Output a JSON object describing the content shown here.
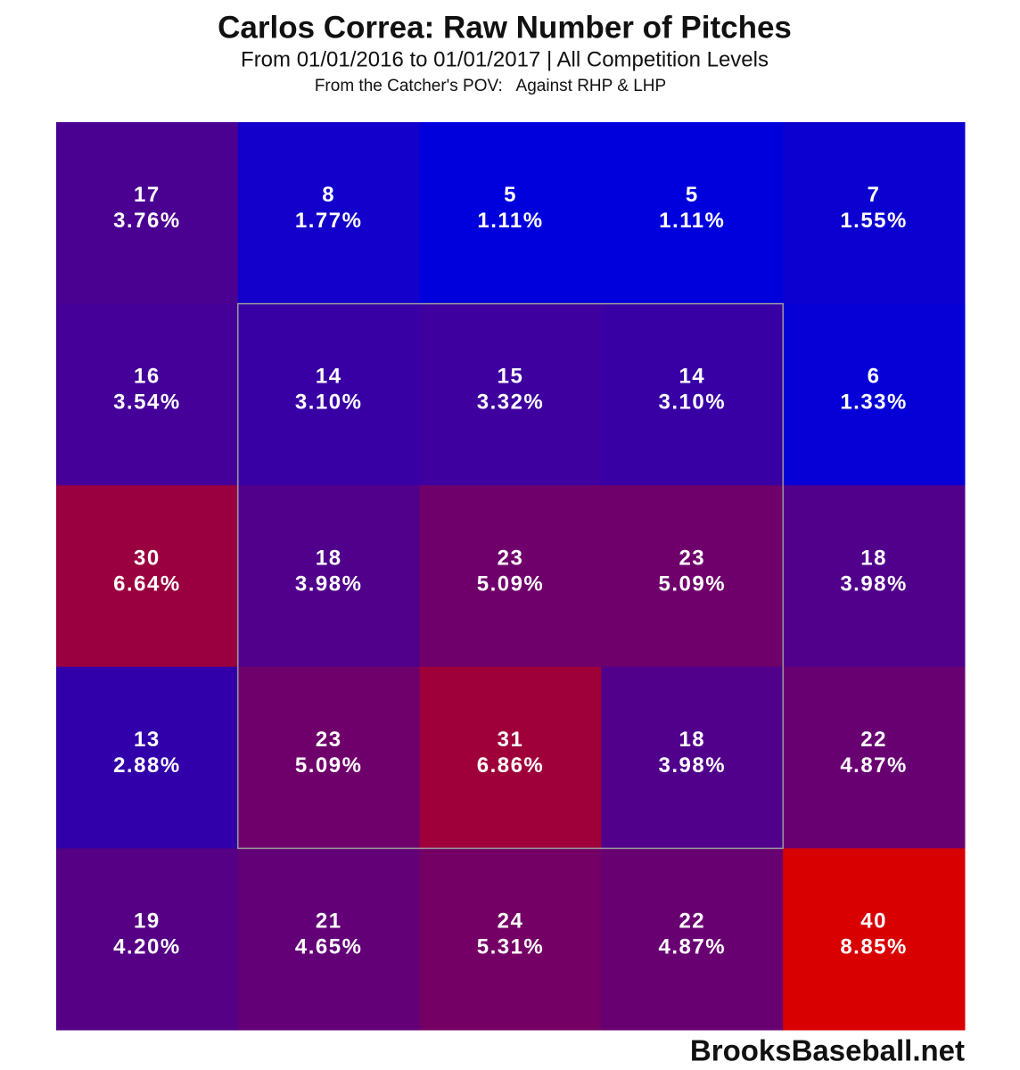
{
  "chart_data": {
    "type": "heatmap",
    "title": "Carlos Correa: Raw Number of Pitches",
    "subtitle": "From 01/01/2016 to 01/01/2017 | All Competition Levels",
    "note": "From the Catcher's POV:   Against RHP & LHP",
    "credit": "BrooksBaseball.net",
    "color_scale": [
      "#0000dd",
      "#d80000"
    ],
    "values": [
      [
        17,
        8,
        5,
        5,
        7
      ],
      [
        16,
        14,
        15,
        14,
        6
      ],
      [
        30,
        18,
        23,
        23,
        18
      ],
      [
        13,
        23,
        31,
        18,
        22
      ],
      [
        19,
        21,
        24,
        22,
        40
      ]
    ],
    "value_labels": [
      [
        "3.76%",
        "1.77%",
        "1.11%",
        "1.11%",
        "1.55%"
      ],
      [
        "3.54%",
        "3.10%",
        "3.32%",
        "3.10%",
        "1.33%"
      ],
      [
        "6.64%",
        "3.98%",
        "5.09%",
        "5.09%",
        "3.98%"
      ],
      [
        "2.88%",
        "5.09%",
        "6.86%",
        "3.98%",
        "4.87%"
      ],
      [
        "4.20%",
        "4.65%",
        "5.31%",
        "4.87%",
        "8.85%"
      ]
    ]
  }
}
